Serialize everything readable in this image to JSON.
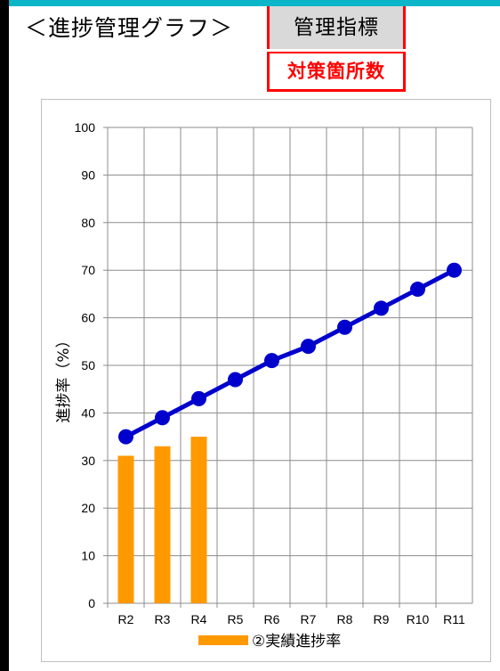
{
  "header": {
    "title": "＜進捗管理グラフ＞",
    "indicator_label": "管理指標",
    "indicator_value": "対策箇所数"
  },
  "colors": {
    "accent_strip": "#0bb6c9",
    "bar": "#ff9900",
    "line": "#0000cc",
    "indicator_border": "#ff0000"
  },
  "chart_data": {
    "type": "bar",
    "categories": [
      "R2",
      "R3",
      "R4",
      "R5",
      "R6",
      "R7",
      "R8",
      "R9",
      "R10",
      "R11"
    ],
    "series": [
      {
        "name": "②実績進捗率",
        "type": "bar",
        "values": [
          31,
          33,
          35,
          null,
          null,
          null,
          null,
          null,
          null,
          null
        ]
      },
      {
        "type": "line",
        "values": [
          35,
          39,
          43,
          47,
          51,
          54,
          58,
          62,
          66,
          70
        ]
      }
    ],
    "ylabel": "進捗率（%）",
    "ylim": [
      0,
      100
    ],
    "yticks": [
      0,
      10,
      20,
      30,
      40,
      50,
      60,
      70,
      80,
      90,
      100
    ],
    "grid": true,
    "legend": "bottom"
  }
}
